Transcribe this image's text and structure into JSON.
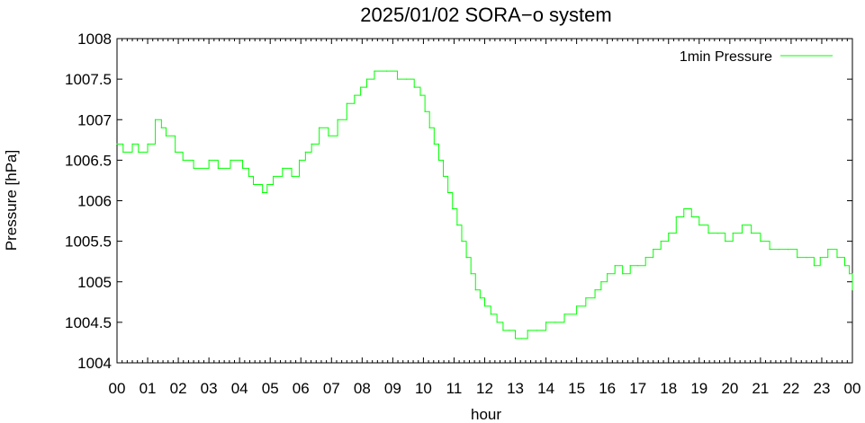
{
  "chart_data": {
    "type": "line",
    "title": "2025/01/02 SORA−o system",
    "xlabel": "hour",
    "ylabel": "Pressure [hPa]",
    "xlim": [
      0,
      24
    ],
    "ylim": [
      1004,
      1008
    ],
    "x_tick_labels": [
      "00",
      "01",
      "02",
      "03",
      "04",
      "05",
      "06",
      "07",
      "08",
      "09",
      "10",
      "11",
      "12",
      "13",
      "14",
      "15",
      "16",
      "17",
      "18",
      "19",
      "20",
      "21",
      "22",
      "23",
      "00"
    ],
    "y_tick_labels": [
      "1004",
      "1004.5",
      "1005",
      "1005.5",
      "1006",
      "1006.5",
      "1007",
      "1007.5",
      "1008"
    ],
    "legend": "top-right",
    "grid": false,
    "series": [
      {
        "name": "1min Pressure",
        "color": "#00ff00",
        "step": true,
        "x": [
          0,
          0.2,
          0.5,
          0.7,
          1.0,
          1.25,
          1.45,
          1.6,
          1.9,
          2.15,
          2.5,
          3.0,
          3.3,
          3.7,
          4.1,
          4.3,
          4.45,
          4.75,
          4.9,
          5.1,
          5.4,
          5.7,
          5.95,
          6.15,
          6.35,
          6.6,
          6.9,
          7.2,
          7.5,
          7.75,
          7.95,
          8.15,
          8.4,
          8.8,
          9.15,
          9.45,
          9.7,
          9.9,
          10.05,
          10.2,
          10.35,
          10.5,
          10.65,
          10.8,
          10.95,
          11.1,
          11.25,
          11.4,
          11.55,
          11.7,
          11.85,
          12.0,
          12.2,
          12.4,
          12.6,
          12.8,
          13.0,
          13.2,
          13.4,
          13.7,
          14.0,
          14.3,
          14.6,
          15.0,
          15.3,
          15.6,
          15.8,
          16.0,
          16.25,
          16.5,
          16.75,
          17.0,
          17.25,
          17.5,
          17.75,
          18.0,
          18.25,
          18.5,
          18.75,
          19.0,
          19.3,
          19.6,
          19.85,
          20.1,
          20.4,
          20.7,
          21.0,
          21.3,
          21.6,
          21.9,
          22.2,
          22.5,
          22.75,
          22.95,
          23.2,
          23.5,
          23.75,
          23.9,
          24.0
        ],
        "values": [
          1006.7,
          1006.6,
          1006.7,
          1006.6,
          1006.7,
          1007.0,
          1006.9,
          1006.8,
          1006.6,
          1006.5,
          1006.4,
          1006.5,
          1006.4,
          1006.5,
          1006.4,
          1006.3,
          1006.2,
          1006.1,
          1006.2,
          1006.3,
          1006.4,
          1006.3,
          1006.5,
          1006.6,
          1006.7,
          1006.9,
          1006.8,
          1007.0,
          1007.2,
          1007.3,
          1007.4,
          1007.5,
          1007.6,
          1007.6,
          1007.5,
          1007.5,
          1007.4,
          1007.3,
          1007.1,
          1006.9,
          1006.7,
          1006.5,
          1006.3,
          1006.1,
          1005.9,
          1005.7,
          1005.5,
          1005.3,
          1005.1,
          1004.9,
          1004.8,
          1004.7,
          1004.6,
          1004.5,
          1004.4,
          1004.4,
          1004.3,
          1004.3,
          1004.4,
          1004.4,
          1004.5,
          1004.5,
          1004.6,
          1004.7,
          1004.8,
          1004.9,
          1005.0,
          1005.1,
          1005.2,
          1005.1,
          1005.2,
          1005.2,
          1005.3,
          1005.4,
          1005.5,
          1005.6,
          1005.8,
          1005.9,
          1005.8,
          1005.7,
          1005.6,
          1005.6,
          1005.5,
          1005.6,
          1005.7,
          1005.6,
          1005.5,
          1005.4,
          1005.4,
          1005.4,
          1005.3,
          1005.3,
          1005.2,
          1005.3,
          1005.4,
          1005.3,
          1005.2,
          1005.1,
          1004.9
        ]
      }
    ]
  }
}
